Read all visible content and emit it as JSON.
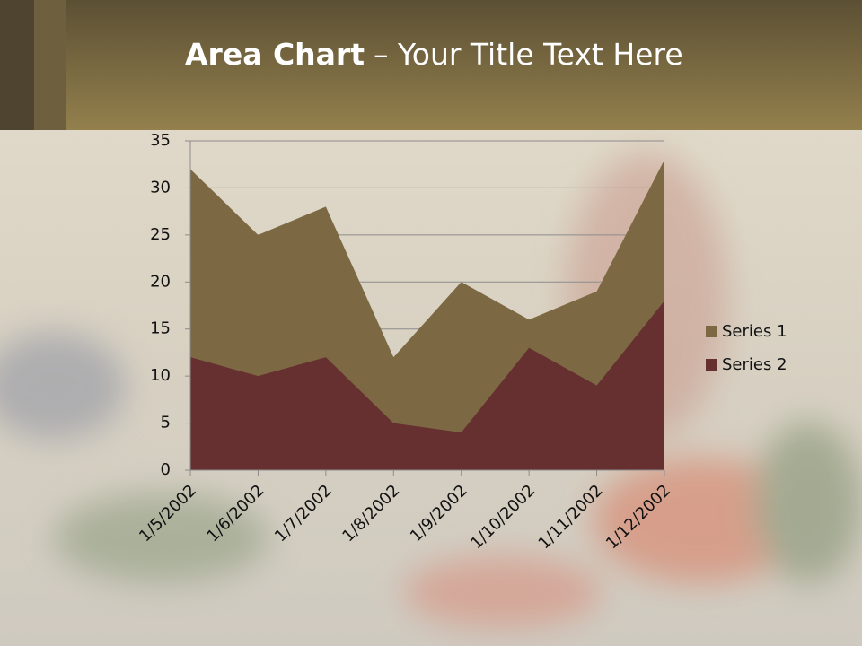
{
  "chart_data": {
    "type": "area",
    "title": [
      "Area Chart",
      "– Your Title Text Here"
    ],
    "categories": [
      "1/5/2002",
      "1/6/2002",
      "1/7/2002",
      "1/8/2002",
      "1/9/2002",
      "1/10/2002",
      "1/11/2002",
      "1/12/2002"
    ],
    "series": [
      {
        "name": "Series 1",
        "color": "#7c6943",
        "values": [
          32,
          25,
          28,
          12,
          20,
          16,
          19,
          33
        ]
      },
      {
        "name": "Series 2",
        "color": "#662f30",
        "values": [
          12,
          10,
          12,
          5,
          4,
          13,
          9,
          18
        ]
      }
    ],
    "ylim": [
      0,
      35
    ],
    "yticks": [
      0,
      5,
      10,
      15,
      20,
      25,
      30,
      35
    ],
    "grid": true,
    "legend": "right"
  }
}
